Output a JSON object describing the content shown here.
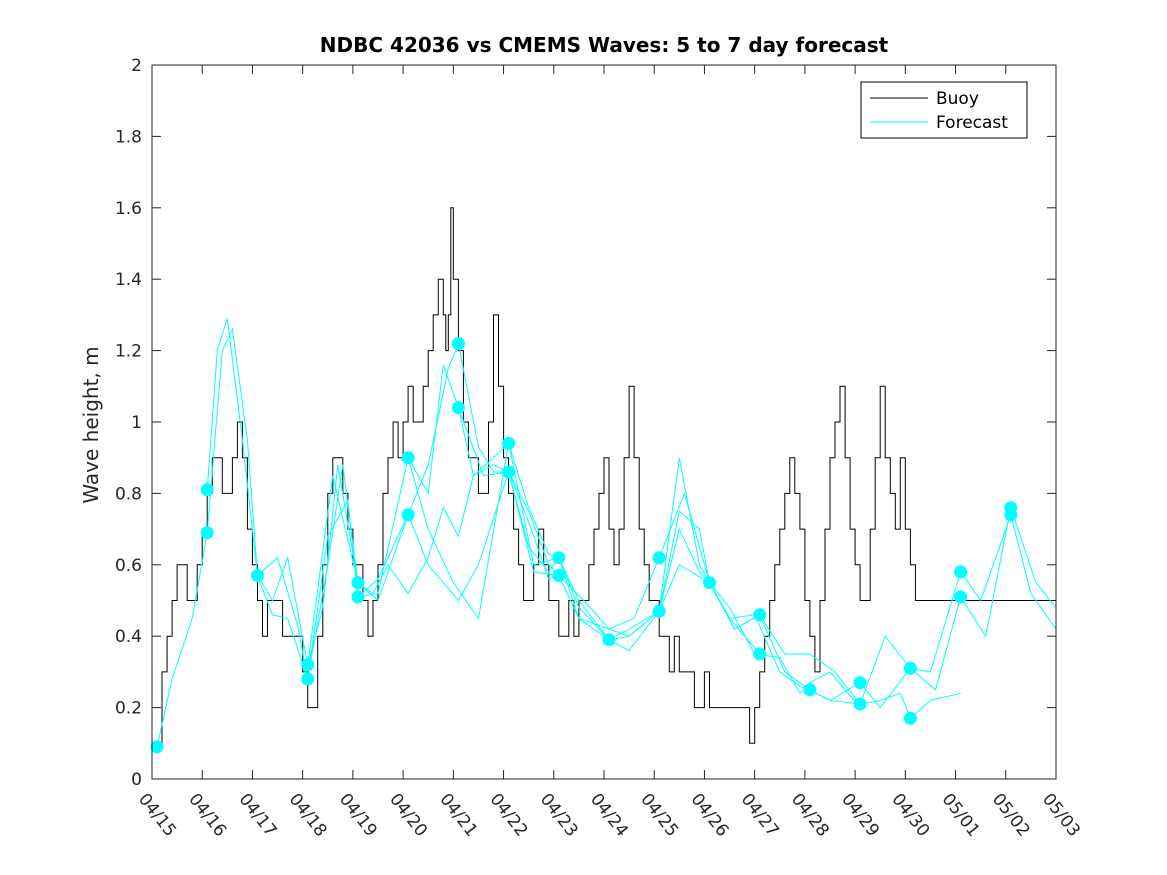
{
  "chart_data": {
    "type": "line",
    "title": "NDBC 42036 vs CMEMS Waves: 5 to 7 day forecast",
    "xlabel": "",
    "ylabel": "Wave height, m",
    "ylim": [
      0,
      2
    ],
    "yticks": [
      "0",
      "0.2",
      "0.4",
      "0.6",
      "0.8",
      "1",
      "1.2",
      "1.4",
      "1.6",
      "1.8",
      "2"
    ],
    "xlim": [
      "04/15",
      "05/03"
    ],
    "xticks": [
      "04/15",
      "04/16",
      "04/17",
      "04/18",
      "04/19",
      "04/20",
      "04/21",
      "04/22",
      "04/23",
      "04/24",
      "04/25",
      "04/26",
      "04/27",
      "04/28",
      "04/29",
      "04/30",
      "05/01",
      "05/02",
      "05/03"
    ],
    "grid": false,
    "legend": {
      "position": "top-right",
      "entries": [
        "Buoy",
        "Forecast"
      ]
    },
    "colors": {
      "buoy": "#000000",
      "forecast": "#00ffff"
    },
    "series": [
      {
        "name": "Buoy",
        "x_day": [
          0.1,
          0.2,
          0.3,
          0.4,
          0.5,
          0.6,
          0.7,
          0.8,
          0.9,
          1.0,
          1.1,
          1.2,
          1.3,
          1.4,
          1.5,
          1.6,
          1.7,
          1.8,
          1.9,
          2.0,
          2.1,
          2.2,
          2.3,
          2.4,
          2.5,
          2.6,
          2.7,
          2.8,
          2.9,
          3.0,
          3.1,
          3.2,
          3.3,
          3.4,
          3.5,
          3.6,
          3.7,
          3.8,
          3.9,
          4.0,
          4.1,
          4.2,
          4.3,
          4.4,
          4.5,
          4.6,
          4.7,
          4.8,
          4.9,
          5.0,
          5.1,
          5.2,
          5.3,
          5.4,
          5.5,
          5.6,
          5.7,
          5.8,
          5.85,
          5.9,
          5.95,
          6.0,
          6.1,
          6.2,
          6.3,
          6.4,
          6.5,
          6.6,
          6.7,
          6.8,
          6.9,
          7.0,
          7.1,
          7.2,
          7.3,
          7.4,
          7.5,
          7.6,
          7.7,
          7.8,
          7.9,
          8.0,
          8.1,
          8.2,
          8.3,
          8.4,
          8.5,
          8.6,
          8.7,
          8.8,
          8.9,
          9.0,
          9.1,
          9.2,
          9.3,
          9.4,
          9.5,
          9.6,
          9.7,
          9.8,
          9.9,
          10.0,
          10.1,
          10.2,
          10.3,
          10.4,
          10.5,
          10.6,
          10.7,
          10.8,
          10.9,
          11.0,
          11.1,
          11.2,
          11.3,
          11.4,
          11.5,
          11.6,
          11.7,
          11.8,
          11.9,
          12.0,
          12.1,
          12.2,
          12.3,
          12.4,
          12.5,
          12.6,
          12.7,
          12.8,
          12.9,
          13.0,
          13.1,
          13.2,
          13.3,
          13.4,
          13.5,
          13.6,
          13.7,
          13.8,
          13.9,
          14.0,
          14.1,
          14.2,
          14.3,
          14.4,
          14.5,
          14.6,
          14.7,
          14.8,
          14.9,
          15.0,
          15.1,
          15.2,
          15.3,
          15.4,
          15.5,
          15.6,
          15.7,
          15.8,
          15.9,
          16.0,
          16.1,
          16.2,
          16.3,
          16.4,
          16.5,
          16.6,
          16.7,
          16.8,
          16.9,
          17.0,
          17.1,
          17.2,
          17.3,
          17.4,
          17.5,
          17.6,
          17.7,
          17.8,
          17.9,
          18.0
        ],
        "values": [
          0.1,
          0.3,
          0.4,
          0.5,
          0.6,
          0.6,
          0.5,
          0.5,
          0.6,
          0.7,
          0.8,
          0.9,
          0.9,
          0.8,
          0.8,
          0.9,
          1.0,
          0.9,
          0.7,
          0.6,
          0.5,
          0.4,
          0.5,
          0.5,
          0.5,
          0.4,
          0.4,
          0.4,
          0.4,
          0.3,
          0.2,
          0.2,
          0.4,
          0.6,
          0.8,
          0.9,
          0.9,
          0.8,
          0.7,
          0.6,
          0.6,
          0.5,
          0.4,
          0.5,
          0.6,
          0.8,
          0.9,
          1.0,
          0.9,
          1.0,
          1.1,
          1.0,
          1.0,
          1.1,
          1.2,
          1.3,
          1.4,
          1.3,
          1.2,
          1.3,
          1.6,
          1.4,
          1.2,
          1.0,
          0.9,
          0.9,
          0.8,
          0.8,
          1.0,
          1.3,
          1.1,
          0.9,
          0.8,
          0.7,
          0.6,
          0.5,
          0.5,
          0.6,
          0.7,
          0.6,
          0.5,
          0.5,
          0.4,
          0.4,
          0.5,
          0.4,
          0.5,
          0.5,
          0.6,
          0.7,
          0.8,
          0.9,
          0.7,
          0.6,
          0.7,
          0.9,
          1.1,
          0.9,
          0.7,
          0.6,
          0.5,
          0.5,
          0.4,
          0.4,
          0.3,
          0.4,
          0.3,
          0.3,
          0.3,
          0.2,
          0.2,
          0.3,
          0.2,
          0.2,
          0.2,
          0.2,
          0.2,
          0.2,
          0.2,
          0.2,
          0.1,
          0.2,
          0.3,
          0.4,
          0.5,
          0.6,
          0.7,
          0.8,
          0.9,
          0.8,
          0.7,
          0.5,
          0.4,
          0.3,
          0.5,
          0.7,
          0.9,
          1.0,
          1.1,
          0.9,
          0.7,
          0.6,
          0.5,
          0.5,
          0.7,
          0.9,
          1.1,
          0.9,
          0.8,
          0.7,
          0.9,
          0.7,
          0.6,
          0.5,
          0.5,
          0.5,
          0.5,
          0.5,
          0.5,
          0.5,
          0.5,
          0.5,
          0.5,
          0.5,
          0.5,
          0.5,
          0.5,
          0.5,
          0.5,
          0.5,
          0.5,
          0.5,
          0.5,
          0.5,
          0.5,
          0.5,
          0.5,
          0.5,
          0.5,
          0.5,
          0.5,
          0.5
        ]
      },
      {
        "name": "Forecast",
        "runs": [
          {
            "x_day": [
              0.1,
              0.4,
              0.8,
              1.1,
              1.4,
              1.6,
              1.9,
              2.1,
              2.4,
              2.7,
              3.1,
              3.4,
              3.7,
              4.1
            ],
            "values": [
              0.09,
              0.28,
              0.45,
              0.69,
              1.2,
              1.26,
              0.95,
              0.57,
              0.5,
              0.62,
              0.32,
              0.48,
              0.88,
              0.55
            ]
          },
          {
            "x_day": [
              1.1,
              1.3,
              1.5,
              1.8,
              2.1,
              2.4,
              2.7,
              3.1,
              3.5,
              3.8,
              4.1,
              4.5,
              5.1,
              5.5,
              5.9,
              6.1,
              6.5,
              6.8,
              7.1,
              7.5,
              7.9,
              8.1
            ],
            "values": [
              0.81,
              1.2,
              1.29,
              0.95,
              0.57,
              0.46,
              0.45,
              0.28,
              0.6,
              0.88,
              0.55,
              0.5,
              0.74,
              0.88,
              1.15,
              1.22,
              0.93,
              0.86,
              0.86,
              0.75,
              0.6,
              0.57
            ]
          },
          {
            "x_day": [
              2.1,
              2.5,
              2.9,
              3.1,
              3.5,
              3.9,
              4.1,
              4.5,
              5.1,
              5.5,
              5.8,
              6.1,
              6.4,
              6.8,
              7.1,
              7.5,
              7.9,
              8.1,
              8.5,
              9.1,
              9.5,
              10.1,
              10.5,
              10.9,
              11.1,
              11.5,
              12.1
            ],
            "values": [
              0.57,
              0.62,
              0.43,
              0.28,
              0.68,
              0.78,
              0.51,
              0.52,
              0.9,
              0.8,
              1.16,
              1.04,
              0.85,
              0.9,
              0.94,
              0.76,
              0.63,
              0.62,
              0.48,
              0.39,
              0.36,
              0.47,
              0.7,
              0.58,
              0.55,
              0.45,
              0.35
            ]
          },
          {
            "x_day": [
              3.1,
              3.6,
              4.1,
              4.4,
              4.7,
              5.1,
              5.5,
              5.8,
              6.1,
              6.4,
              6.8,
              7.1,
              7.5,
              7.9,
              8.1,
              8.5,
              9.1,
              9.5,
              10.1,
              10.5,
              10.9,
              11.1,
              11.5,
              12.0,
              12.5,
              12.9,
              13.1,
              13.5,
              14.1
            ],
            "values": [
              0.32,
              0.85,
              0.55,
              0.52,
              0.6,
              0.52,
              0.62,
              0.76,
              0.68,
              0.85,
              0.88,
              0.86,
              0.72,
              0.56,
              0.57,
              0.45,
              0.39,
              0.4,
              0.47,
              0.9,
              0.6,
              0.55,
              0.48,
              0.35,
              0.34,
              0.24,
              0.27,
              0.3,
              0.2
            ]
          },
          {
            "x_day": [
              4.1,
              4.5,
              5.1,
              5.5,
              5.8,
              6.1,
              6.5,
              7.1,
              7.5,
              7.9,
              8.1,
              8.5,
              9.1,
              9.5,
              10.1,
              10.5,
              10.9,
              11.1,
              11.5,
              12.0,
              12.5,
              12.9,
              13.1,
              13.5,
              14.1,
              14.5,
              14.9,
              15.1,
              15.5,
              16.1
            ],
            "values": [
              0.51,
              0.56,
              0.74,
              0.6,
              0.55,
              0.5,
              0.6,
              0.86,
              0.65,
              0.58,
              0.62,
              0.45,
              0.42,
              0.4,
              0.47,
              0.75,
              0.7,
              0.55,
              0.45,
              0.46,
              0.3,
              0.26,
              0.25,
              0.22,
              0.21,
              0.22,
              0.24,
              0.17,
              0.22,
              0.24
            ]
          },
          {
            "x_day": [
              5.1,
              5.5,
              6.0,
              6.5,
              7.1,
              7.6,
              8.1,
              8.5,
              9.1,
              9.5,
              10.1,
              10.5,
              11.1,
              11.6,
              12.1,
              12.6,
              13.1,
              13.5,
              14.1,
              14.5,
              15.1,
              15.5,
              16.1,
              16.5,
              17.1,
              17.5,
              18.0
            ],
            "values": [
              0.9,
              0.7,
              0.55,
              0.45,
              0.94,
              0.6,
              0.62,
              0.5,
              0.39,
              0.42,
              0.47,
              0.6,
              0.55,
              0.42,
              0.46,
              0.3,
              0.25,
              0.22,
              0.27,
              0.2,
              0.31,
              0.3,
              0.58,
              0.5,
              0.74,
              0.52,
              0.42
            ]
          },
          {
            "x_day": [
              6.1,
              6.6,
              7.1,
              7.6,
              8.1,
              8.6,
              9.1,
              9.6,
              10.1,
              10.6,
              11.1,
              11.6,
              12.1,
              12.6,
              13.1,
              13.6,
              14.1,
              14.6,
              15.1,
              15.6,
              16.1,
              16.6,
              17.1,
              17.6,
              18.0
            ],
            "values": [
              1.04,
              0.85,
              0.86,
              0.58,
              0.57,
              0.5,
              0.42,
              0.45,
              0.62,
              0.8,
              0.55,
              0.42,
              0.46,
              0.35,
              0.35,
              0.3,
              0.21,
              0.4,
              0.31,
              0.25,
              0.51,
              0.4,
              0.76,
              0.55,
              0.48
            ]
          }
        ],
        "markers": {
          "x_day": [
            0.1,
            1.1,
            1.1,
            2.1,
            3.1,
            3.1,
            4.1,
            4.1,
            5.1,
            5.1,
            6.1,
            6.1,
            7.1,
            7.1,
            8.1,
            8.1,
            9.1,
            10.1,
            10.1,
            11.1,
            12.1,
            12.1,
            13.1,
            14.1,
            14.1,
            15.1,
            15.1,
            16.1,
            16.1,
            17.1,
            17.1
          ],
          "values": [
            0.09,
            0.81,
            0.69,
            0.57,
            0.32,
            0.28,
            0.55,
            0.51,
            0.9,
            0.74,
            1.22,
            1.04,
            0.94,
            0.86,
            0.62,
            0.57,
            0.39,
            0.62,
            0.47,
            0.55,
            0.46,
            0.35,
            0.25,
            0.27,
            0.21,
            0.31,
            0.17,
            0.58,
            0.51,
            0.76,
            0.74
          ]
        }
      }
    ]
  }
}
